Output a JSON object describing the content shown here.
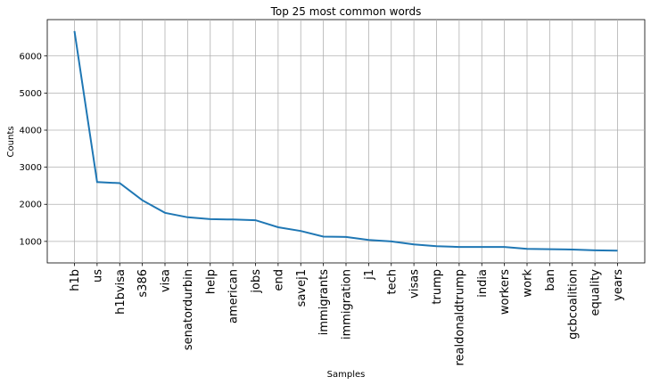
{
  "chart_data": {
    "type": "line",
    "title": "Top 25 most common words",
    "xlabel": "Samples",
    "ylabel": "Counts",
    "categories": [
      "h1b",
      "us",
      "h1bvisa",
      "s386",
      "visa",
      "senatordurbin",
      "help",
      "american",
      "jobs",
      "end",
      "savej1",
      "immigrants",
      "immigration",
      "j1",
      "tech",
      "visas",
      "trump",
      "realdonaldtrump",
      "india",
      "workers",
      "work",
      "ban",
      "gcbcoalition",
      "equality",
      "years"
    ],
    "series": [
      {
        "values": [
          6670,
          2600,
          2570,
          2110,
          1770,
          1650,
          1600,
          1590,
          1570,
          1380,
          1280,
          1130,
          1120,
          1040,
          1000,
          920,
          870,
          850,
          850,
          850,
          800,
          790,
          780,
          760,
          750
        ],
        "color": "#1f77b4"
      }
    ],
    "yticks": [
      1000,
      2000,
      3000,
      4000,
      5000,
      6000
    ],
    "ylim": [
      420,
      6980
    ],
    "grid": true,
    "legend": "none"
  }
}
